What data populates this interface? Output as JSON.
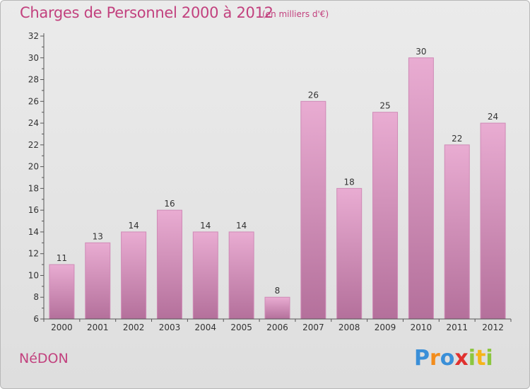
{
  "header": {
    "title": "Charges de Personnel 2000 à 2012",
    "subtitle": "(en milliers d'€)"
  },
  "footer": {
    "commune": "NéDON",
    "logo_letters": [
      {
        "char": "P",
        "color": "#3a8fd8"
      },
      {
        "char": "r",
        "color": "#f28c1c"
      },
      {
        "char": "o",
        "color": "#3a8fd8"
      },
      {
        "char": "x",
        "color": "#e0302e"
      },
      {
        "char": "i",
        "color": "#8cc63f"
      },
      {
        "char": "t",
        "color": "#f5b41a"
      },
      {
        "char": "i",
        "color": "#8cc63f"
      }
    ]
  },
  "colors": {
    "bar_light": "#e9acd2",
    "bar_dark": "#b4709b",
    "bar_edge": "#cf8ab6",
    "title": "#c2417e",
    "axis": "#555555"
  },
  "chart_data": {
    "type": "bar",
    "categories": [
      "2000",
      "2001",
      "2002",
      "2003",
      "2004",
      "2005",
      "2006",
      "2007",
      "2008",
      "2009",
      "2010",
      "2011",
      "2012"
    ],
    "values": [
      11,
      13,
      14,
      16,
      14,
      14,
      8,
      26,
      18,
      25,
      30,
      22,
      24
    ],
    "data_labels": [
      "11",
      "13",
      "14",
      "16",
      "14",
      "14",
      "8",
      "26",
      "18",
      "25",
      "30",
      "22",
      "24"
    ],
    "title": "Charges de Personnel 2000 à 2012",
    "unit": "(en milliers d'€)",
    "xlabel": "",
    "ylabel": "",
    "ylim": [
      6,
      32
    ],
    "yticks": [
      6,
      8,
      10,
      12,
      14,
      16,
      18,
      20,
      22,
      24,
      26,
      28,
      30,
      32
    ],
    "grid": false,
    "legend": "none"
  }
}
